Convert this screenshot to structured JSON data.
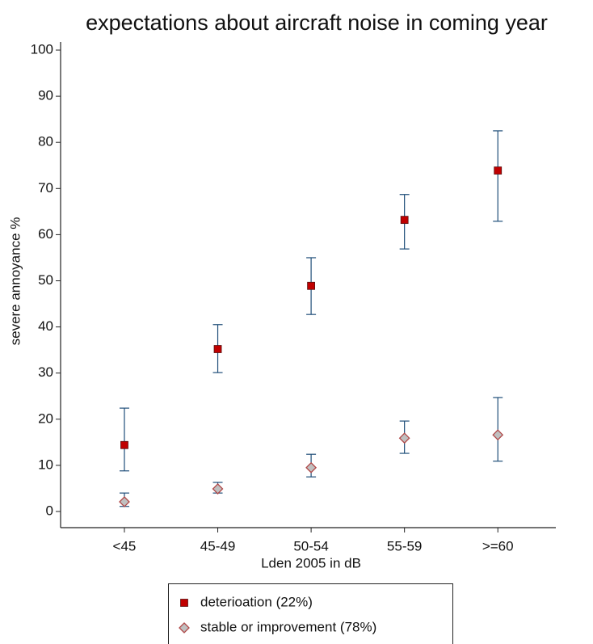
{
  "chart_data": {
    "type": "errorbar",
    "title": "expectations about aircraft noise in coming year",
    "x_label": "Lden 2005 in dB",
    "y_label": "severe annoyance %",
    "categories": [
      "<45",
      "45-49",
      "50-54",
      "55-59",
      ">=60"
    ],
    "ylim": [
      0,
      100
    ],
    "yticks": [
      0,
      10,
      20,
      30,
      40,
      50,
      60,
      70,
      80,
      90,
      100
    ],
    "errorbar_color": "#1f4e79",
    "series": [
      {
        "name": "deterioation (22%)",
        "marker": "square",
        "color": "#c00000",
        "values": [
          14.4,
          35.2,
          48.9,
          63.2,
          73.9
        ],
        "lower": [
          8.8,
          30.1,
          42.7,
          56.9,
          62.9
        ],
        "upper": [
          22.4,
          40.5,
          55.0,
          68.7,
          82.5
        ]
      },
      {
        "name": "stable or improvement (78%)",
        "marker": "diamond",
        "color": "#c0c0c0",
        "values": [
          2.1,
          4.9,
          9.5,
          15.9,
          16.6
        ],
        "lower": [
          1.1,
          4.0,
          7.5,
          12.6,
          10.9
        ],
        "upper": [
          4.0,
          6.3,
          12.4,
          19.6,
          24.7
        ]
      }
    ]
  }
}
